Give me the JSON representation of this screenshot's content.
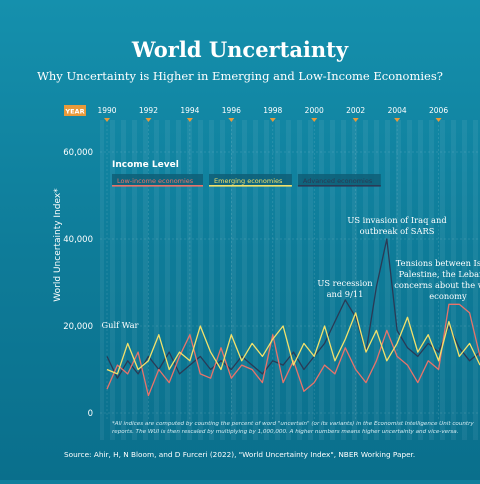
{
  "header": {
    "title": "World Uncertainty",
    "subtitle": "Why Uncertainty is Higher in Emerging and Low-Income Economies?"
  },
  "chart_data": {
    "type": "line",
    "ylabel": "World Uncertainty Index*",
    "year_badge": "YEAR",
    "ylim": [
      0,
      60000
    ],
    "yticks": [
      0,
      20000,
      40000,
      60000
    ],
    "ytick_labels": [
      "0",
      "20,000",
      "40,000",
      "60,000"
    ],
    "xlim": [
      1990,
      2008
    ],
    "xticks": [
      "1990",
      "1992",
      "1994",
      "1996",
      "1998",
      "2000",
      "2002",
      "2004",
      "2006"
    ],
    "grid": true,
    "legend": {
      "title": "Income Level",
      "placement": "top-left"
    },
    "series": [
      {
        "name": "Low-income economies",
        "color": "#e8736a",
        "points": [
          [
            1990,
            5500
          ],
          [
            1990.5,
            11000
          ],
          [
            1991,
            9000
          ],
          [
            1991.5,
            14000
          ],
          [
            1992,
            4000
          ],
          [
            1992.5,
            10000
          ],
          [
            1993,
            7000
          ],
          [
            1993.5,
            13000
          ],
          [
            1994,
            18000
          ],
          [
            1994.5,
            9000
          ],
          [
            1995,
            8000
          ],
          [
            1995.5,
            15000
          ],
          [
            1996,
            8000
          ],
          [
            1996.5,
            11000
          ],
          [
            1997,
            10000
          ],
          [
            1997.5,
            7000
          ],
          [
            1998,
            18000
          ],
          [
            1998.5,
            7000
          ],
          [
            1999,
            12000
          ],
          [
            1999.5,
            5000
          ],
          [
            2000,
            7000
          ],
          [
            2000.5,
            11000
          ],
          [
            2001,
            9000
          ],
          [
            2001.5,
            15000
          ],
          [
            2002,
            10000
          ],
          [
            2002.5,
            7000
          ],
          [
            2003,
            12000
          ],
          [
            2003.5,
            19000
          ],
          [
            2004,
            13000
          ],
          [
            2004.5,
            11000
          ],
          [
            2005,
            7000
          ],
          [
            2005.5,
            12000
          ],
          [
            2006,
            10000
          ],
          [
            2006.5,
            25000
          ],
          [
            2007,
            25000
          ],
          [
            2007.5,
            23000
          ],
          [
            2008,
            13000
          ]
        ]
      },
      {
        "name": "Emerging economies",
        "color": "#f2e16b",
        "points": [
          [
            1990,
            10000
          ],
          [
            1990.5,
            9000
          ],
          [
            1991,
            16000
          ],
          [
            1991.5,
            10000
          ],
          [
            1992,
            12000
          ],
          [
            1992.5,
            18000
          ],
          [
            1993,
            10000
          ],
          [
            1993.5,
            14000
          ],
          [
            1994,
            12000
          ],
          [
            1994.5,
            20000
          ],
          [
            1995,
            14000
          ],
          [
            1995.5,
            10000
          ],
          [
            1996,
            18000
          ],
          [
            1996.5,
            12000
          ],
          [
            1997,
            16000
          ],
          [
            1997.5,
            13000
          ],
          [
            1998,
            17000
          ],
          [
            1998.5,
            20000
          ],
          [
            1999,
            11000
          ],
          [
            1999.5,
            16000
          ],
          [
            2000,
            13000
          ],
          [
            2000.5,
            20000
          ],
          [
            2001,
            12000
          ],
          [
            2001.5,
            17000
          ],
          [
            2002,
            23000
          ],
          [
            2002.5,
            14000
          ],
          [
            2003,
            19000
          ],
          [
            2003.5,
            12000
          ],
          [
            2004,
            16000
          ],
          [
            2004.5,
            22000
          ],
          [
            2005,
            14000
          ],
          [
            2005.5,
            18000
          ],
          [
            2006,
            12000
          ],
          [
            2006.5,
            21000
          ],
          [
            2007,
            13000
          ],
          [
            2007.5,
            16000
          ],
          [
            2008,
            11000
          ]
        ]
      },
      {
        "name": "Advanced economies",
        "color": "#2a3a55",
        "points": [
          [
            1990,
            13000
          ],
          [
            1990.5,
            8000
          ],
          [
            1991,
            12000
          ],
          [
            1991.5,
            9000
          ],
          [
            1992,
            13000
          ],
          [
            1992.5,
            10000
          ],
          [
            1993,
            14000
          ],
          [
            1993.5,
            9000
          ],
          [
            1994,
            11000
          ],
          [
            1994.5,
            13000
          ],
          [
            1995,
            10000
          ],
          [
            1995.5,
            12000
          ],
          [
            1996,
            10000
          ],
          [
            1996.5,
            13000
          ],
          [
            1997,
            11000
          ],
          [
            1997.5,
            9000
          ],
          [
            1998,
            12000
          ],
          [
            1998.5,
            11000
          ],
          [
            1999,
            14000
          ],
          [
            1999.5,
            10000
          ],
          [
            2000,
            13000
          ],
          [
            2000.5,
            16000
          ],
          [
            2001,
            21000
          ],
          [
            2001.5,
            26000
          ],
          [
            2002,
            22000
          ],
          [
            2002.5,
            14000
          ],
          [
            2003,
            29000
          ],
          [
            2003.5,
            40000
          ],
          [
            2004,
            19000
          ],
          [
            2004.5,
            15000
          ],
          [
            2005,
            13000
          ],
          [
            2005.5,
            16000
          ],
          [
            2006,
            14000
          ],
          [
            2006.5,
            20000
          ],
          [
            2007,
            15000
          ],
          [
            2007.5,
            12000
          ],
          [
            2008,
            14000
          ]
        ]
      }
    ],
    "annotations": [
      {
        "text": "Gulf War",
        "year": 1991,
        "value": 20000
      },
      {
        "text": "US recession and 9/11",
        "year": 2001,
        "value": 29000
      },
      {
        "text": "US invasion of Iraq and outbreak of SARS",
        "year": 2003.5,
        "value": 41000
      },
      {
        "text": "Tensions between Israel, Palestine, the Lebanon, concerns about the world economy",
        "year": 2007,
        "value": 30000
      }
    ]
  },
  "footnote": "*All indices are computed by counting the percent of word \"uncertain\" (or its variants) in the Economist Intelligence Unit country reports. The WUI is then rescaled by multiplying by 1,000,000. A higher numbers means higher uncertainty and vice-versa.",
  "source": "Source: Ahir, H, N Bloom, and D Furceri (2022), \"World Uncertainty Index\", NBER Working Paper."
}
